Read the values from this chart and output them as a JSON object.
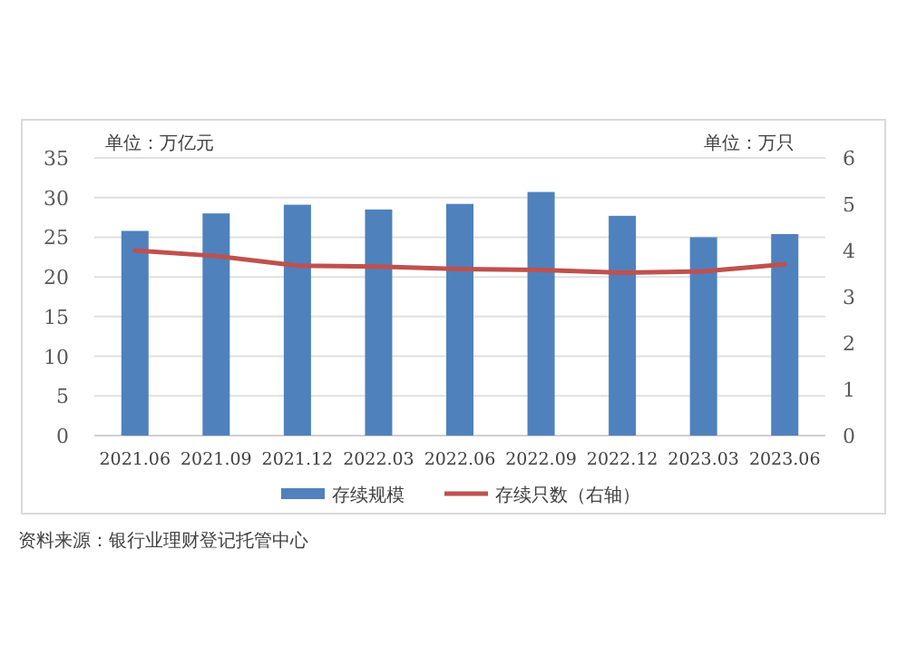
{
  "chart_data": {
    "type": "bar",
    "ylabel": "单位：万亿元",
    "y2label": "单位：万只",
    "categories": [
      "2021.06",
      "2021.09",
      "2021.12",
      "2022.03",
      "2022.06",
      "2022.09",
      "2022.12",
      "2023.03",
      "2023.06"
    ],
    "series": [
      {
        "name": "存续规模",
        "color": "#4f81bd",
        "values": [
          25.8,
          28.0,
          29.1,
          28.5,
          29.2,
          30.7,
          27.7,
          25.0,
          25.4
        ]
      },
      {
        "name": "存续只数（右轴）",
        "type": "line",
        "axis": "y2",
        "color": "#c0504d",
        "values": [
          4.0,
          3.88,
          3.67,
          3.65,
          3.6,
          3.58,
          3.52,
          3.55,
          3.7
        ]
      }
    ],
    "ylim": [
      0,
      35
    ],
    "yticks": [
      0,
      5,
      10,
      15,
      20,
      25,
      30,
      35
    ],
    "y2lim": [
      0,
      6
    ],
    "y2ticks": [
      0,
      1,
      2,
      3,
      4,
      5,
      6
    ],
    "grid": "y",
    "legend": "bottom",
    "annotations": [
      "资料来源：银行业理财登记托管中心"
    ]
  }
}
